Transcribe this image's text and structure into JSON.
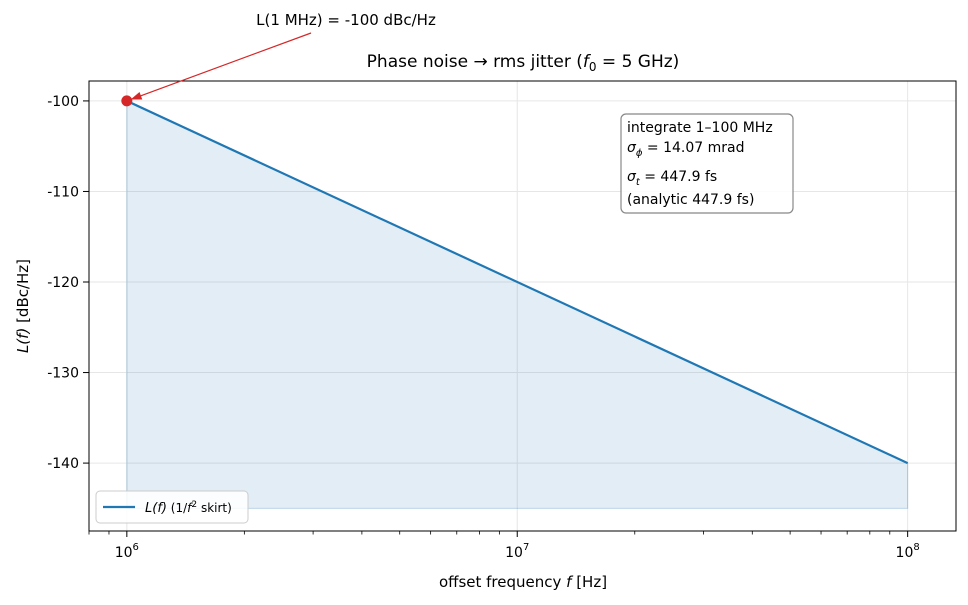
{
  "chart_data": {
    "type": "line",
    "title_prefix": "Phase noise → rms jitter (",
    "title_var": "f",
    "title_sub": "0",
    "title_suffix": " = 5 GHz)",
    "xlabel_prefix": "offset frequency ",
    "xlabel_var": "f",
    "xlabel_suffix": " [Hz]",
    "ylabel_var": "L(f)",
    "ylabel_suffix": " [dBc/Hz]",
    "x_scale": "log",
    "xlim": [
      800000,
      133000000
    ],
    "ylim": [
      -147.5,
      -97.8
    ],
    "x_ticks": [
      {
        "value": 1000000,
        "base": "10",
        "exp": "6"
      },
      {
        "value": 10000000,
        "base": "10",
        "exp": "7"
      },
      {
        "value": 100000000,
        "base": "10",
        "exp": "8"
      }
    ],
    "y_ticks": [
      {
        "value": -100,
        "label": "-100"
      },
      {
        "value": -110,
        "label": "-110"
      },
      {
        "value": -120,
        "label": "-120"
      },
      {
        "value": -130,
        "label": "-130"
      },
      {
        "value": -140,
        "label": "-140"
      }
    ],
    "grid": true,
    "series": [
      {
        "name_var": "L(f)",
        "name_suffix_open": " (1/",
        "name_suffix_var": "f",
        "name_suffix_sup": "2",
        "name_suffix_close": " skirt)",
        "color": "#1f77b4",
        "x": [
          1000000,
          100000000
        ],
        "y": [
          -100,
          -140
        ]
      }
    ],
    "fill": {
      "color": "#1f77b4",
      "opacity": 0.13,
      "x": [
        1000000,
        100000000
      ],
      "y_floor": -145
    },
    "marker_point": {
      "x": 1000000,
      "y": -100,
      "color": "#d62728"
    },
    "annotation": {
      "text": "L(1 MHz) = -100 dBc/Hz",
      "color": "#d62728"
    },
    "info_box": {
      "line1": "integrate 1–100 MHz",
      "line2_sym": "σ",
      "line2_sub": "ϕ",
      "line2_rest": " = 14.07 mrad",
      "line3_sym": "σ",
      "line3_sub": "t",
      "line3_rest": " = 447.9 fs",
      "line4": "(analytic 447.9 fs)"
    },
    "legend_position": "lower-left"
  }
}
